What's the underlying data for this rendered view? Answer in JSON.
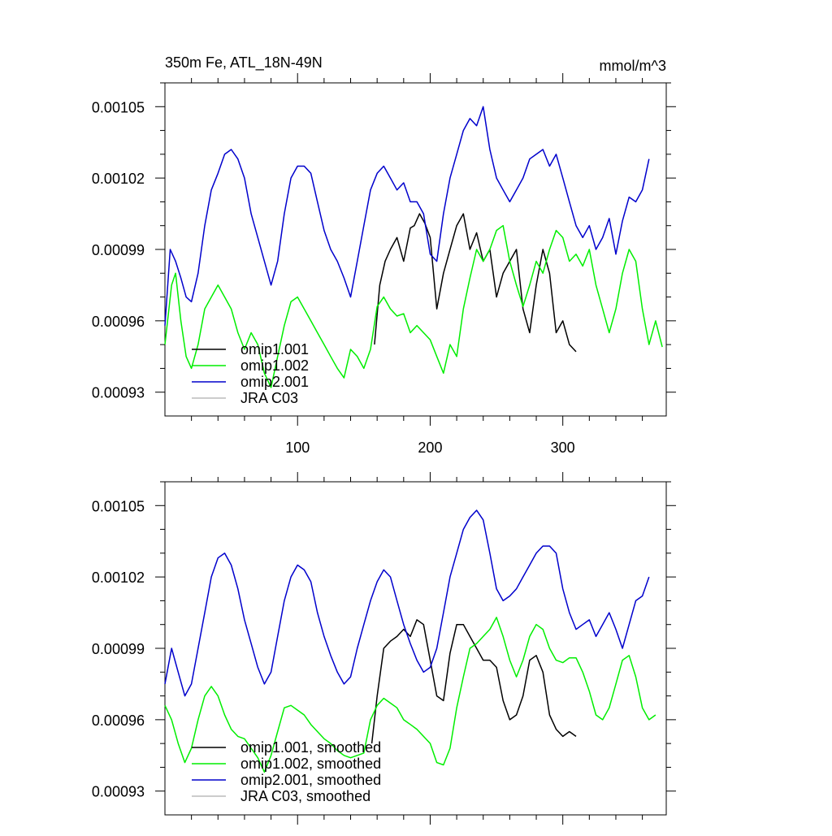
{
  "chart_data": [
    {
      "type": "line",
      "title": "350m Fe, ATL_18N-49N",
      "units": "mmol/m^3",
      "xlim": [
        0,
        378
      ],
      "ylim": [
        0.00092,
        0.00106
      ],
      "yticks": [
        0.00093,
        0.00096,
        0.00099,
        0.00102,
        0.00105
      ],
      "ytick_labels": [
        "0.00093",
        "0.00096",
        "0.00099",
        "0.00102",
        "0.00105"
      ],
      "xticks": [
        100,
        200,
        300
      ],
      "xtick_labels": [
        "100",
        "200",
        "300"
      ],
      "legend_position": "bottom-left",
      "series": [
        {
          "name": "omip1.001",
          "color": "#000000",
          "x": [
            158,
            162,
            166,
            170,
            175,
            180,
            185,
            188,
            192,
            196,
            200,
            205,
            210,
            215,
            220,
            225,
            230,
            235,
            240,
            245,
            250,
            255,
            260,
            265,
            270,
            275,
            280,
            285,
            290,
            295,
            300,
            305,
            310
          ],
          "y": [
            0.00095,
            0.000975,
            0.000985,
            0.00099,
            0.000995,
            0.000985,
            0.000999,
            0.001,
            0.001005,
            0.001001,
            0.000995,
            0.000965,
            0.00098,
            0.00099,
            0.001,
            0.001005,
            0.00099,
            0.000997,
            0.000985,
            0.00099,
            0.00097,
            0.00098,
            0.000985,
            0.00099,
            0.000965,
            0.000955,
            0.000975,
            0.00099,
            0.00098,
            0.000955,
            0.00096,
            0.00095,
            0.000947
          ]
        },
        {
          "name": "omip1.002",
          "color": "#00ee00",
          "x": [
            0,
            5,
            8,
            12,
            16,
            20,
            25,
            30,
            35,
            40,
            45,
            50,
            55,
            60,
            65,
            70,
            75,
            80,
            85,
            90,
            95,
            100,
            105,
            110,
            115,
            120,
            125,
            130,
            135,
            140,
            145,
            150,
            155,
            160,
            165,
            170,
            175,
            180,
            185,
            190,
            195,
            200,
            205,
            210,
            215,
            220,
            225,
            230,
            235,
            240,
            245,
            250,
            255,
            260,
            265,
            270,
            275,
            280,
            285,
            290,
            295,
            300,
            305,
            310,
            315,
            320,
            325,
            330,
            335,
            340,
            345,
            350,
            355,
            360,
            365,
            370,
            375
          ],
          "y": [
            0.00095,
            0.000975,
            0.00098,
            0.00096,
            0.000945,
            0.00094,
            0.00095,
            0.000965,
            0.00097,
            0.000975,
            0.00097,
            0.000965,
            0.000955,
            0.000948,
            0.000955,
            0.00095,
            0.000938,
            0.000932,
            0.000945,
            0.000958,
            0.000968,
            0.00097,
            0.000965,
            0.00096,
            0.000955,
            0.00095,
            0.000945,
            0.00094,
            0.000936,
            0.000948,
            0.000945,
            0.00094,
            0.000948,
            0.000966,
            0.00097,
            0.000965,
            0.000962,
            0.000963,
            0.000955,
            0.000958,
            0.000955,
            0.000952,
            0.000945,
            0.000938,
            0.00095,
            0.000945,
            0.000965,
            0.000978,
            0.00099,
            0.000985,
            0.00099,
            0.000998,
            0.001,
            0.000985,
            0.000975,
            0.000966,
            0.000975,
            0.000985,
            0.00098,
            0.00099,
            0.000998,
            0.000995,
            0.000985,
            0.000988,
            0.000983,
            0.00099,
            0.000975,
            0.000965,
            0.000955,
            0.000965,
            0.00098,
            0.00099,
            0.000985,
            0.000965,
            0.00095,
            0.00096,
            0.000949
          ]
        },
        {
          "name": "omip2.001",
          "color": "#0000cc",
          "x": [
            0,
            4,
            8,
            12,
            16,
            20,
            25,
            30,
            35,
            40,
            45,
            50,
            55,
            60,
            65,
            70,
            75,
            80,
            85,
            90,
            95,
            100,
            105,
            110,
            115,
            120,
            125,
            130,
            135,
            140,
            145,
            150,
            155,
            160,
            165,
            170,
            175,
            180,
            185,
            190,
            195,
            200,
            205,
            210,
            215,
            220,
            225,
            230,
            235,
            240,
            245,
            250,
            255,
            260,
            265,
            270,
            275,
            280,
            285,
            290,
            295,
            300,
            305,
            310,
            315,
            320,
            325,
            330,
            335,
            340,
            345,
            350,
            355,
            360,
            365
          ],
          "y": [
            0.000958,
            0.00099,
            0.000985,
            0.000978,
            0.00097,
            0.000968,
            0.00098,
            0.001,
            0.001015,
            0.001022,
            0.00103,
            0.001032,
            0.001028,
            0.00102,
            0.001005,
            0.000995,
            0.000985,
            0.000975,
            0.000985,
            0.001005,
            0.00102,
            0.001025,
            0.001025,
            0.001022,
            0.00101,
            0.000998,
            0.00099,
            0.000985,
            0.000978,
            0.00097,
            0.000985,
            0.001,
            0.001015,
            0.001022,
            0.001025,
            0.00102,
            0.001015,
            0.001018,
            0.00101,
            0.00101,
            0.001005,
            0.000988,
            0.000985,
            0.001005,
            0.00102,
            0.00103,
            0.00104,
            0.001045,
            0.001042,
            0.00105,
            0.001032,
            0.00102,
            0.001015,
            0.00101,
            0.001015,
            0.00102,
            0.001028,
            0.00103,
            0.001032,
            0.001025,
            0.00103,
            0.00102,
            0.00101,
            0.001,
            0.000995,
            0.001,
            0.00099,
            0.000995,
            0.001003,
            0.000988,
            0.001002,
            0.001012,
            0.00101,
            0.001015,
            0.001028
          ]
        },
        {
          "name": "JRA C03",
          "color": "#bbbbbb",
          "x": [],
          "y": []
        }
      ]
    },
    {
      "type": "line",
      "title": "",
      "xlim": [
        0,
        378
      ],
      "ylim": [
        0.00092,
        0.00106
      ],
      "yticks": [
        0.00093,
        0.00096,
        0.00099,
        0.00102,
        0.00105
      ],
      "ytick_labels": [
        "0.00093",
        "0.00096",
        "0.00099",
        "0.00102",
        "0.00105"
      ],
      "legend_position": "bottom-left",
      "series": [
        {
          "name": "omip1.001, smoothed",
          "color": "#000000",
          "x": [
            156,
            160,
            165,
            170,
            175,
            180,
            185,
            190,
            195,
            200,
            205,
            210,
            215,
            220,
            225,
            230,
            235,
            240,
            245,
            250,
            255,
            260,
            265,
            270,
            275,
            280,
            285,
            290,
            295,
            300,
            305,
            310
          ],
          "y": [
            0.00095,
            0.00097,
            0.00099,
            0.000993,
            0.000995,
            0.000998,
            0.000995,
            0.001002,
            0.001,
            0.000985,
            0.00097,
            0.000968,
            0.000988,
            0.001,
            0.001,
            0.000995,
            0.00099,
            0.000985,
            0.000985,
            0.000982,
            0.000968,
            0.00096,
            0.000962,
            0.00097,
            0.000985,
            0.000987,
            0.00098,
            0.000962,
            0.000956,
            0.000953,
            0.000955,
            0.000953
          ]
        },
        {
          "name": "omip1.002, smoothed",
          "color": "#00ee00",
          "x": [
            0,
            5,
            10,
            15,
            20,
            25,
            30,
            35,
            40,
            45,
            50,
            55,
            60,
            65,
            70,
            75,
            80,
            85,
            90,
            95,
            100,
            105,
            110,
            115,
            120,
            125,
            130,
            135,
            140,
            145,
            150,
            155,
            160,
            165,
            170,
            175,
            180,
            185,
            190,
            195,
            200,
            205,
            210,
            215,
            220,
            225,
            230,
            235,
            240,
            245,
            250,
            255,
            260,
            265,
            270,
            275,
            280,
            285,
            290,
            295,
            300,
            305,
            310,
            315,
            320,
            325,
            330,
            335,
            340,
            345,
            350,
            355,
            360,
            365,
            370
          ],
          "y": [
            0.000966,
            0.00096,
            0.00095,
            0.000942,
            0.000948,
            0.00096,
            0.00097,
            0.000974,
            0.00097,
            0.000962,
            0.000956,
            0.000953,
            0.000952,
            0.000948,
            0.000944,
            0.000938,
            0.000945,
            0.000955,
            0.000965,
            0.000966,
            0.000964,
            0.000962,
            0.000958,
            0.000955,
            0.000952,
            0.00095,
            0.000947,
            0.000945,
            0.000944,
            0.000945,
            0.000946,
            0.00096,
            0.000966,
            0.000969,
            0.000967,
            0.000965,
            0.00096,
            0.000958,
            0.000956,
            0.000953,
            0.00095,
            0.000942,
            0.000941,
            0.000948,
            0.000965,
            0.000978,
            0.00099,
            0.000992,
            0.000995,
            0.000998,
            0.001003,
            0.000995,
            0.000985,
            0.000978,
            0.000985,
            0.000995,
            0.001,
            0.000998,
            0.00099,
            0.000985,
            0.000984,
            0.000986,
            0.000986,
            0.00098,
            0.000972,
            0.000962,
            0.00096,
            0.000965,
            0.000975,
            0.000985,
            0.000987,
            0.000978,
            0.000965,
            0.00096,
            0.000962
          ]
        },
        {
          "name": "omip2.001, smoothed",
          "color": "#0000cc",
          "x": [
            0,
            5,
            10,
            15,
            20,
            25,
            30,
            35,
            40,
            45,
            50,
            55,
            60,
            65,
            70,
            75,
            80,
            85,
            90,
            95,
            100,
            105,
            110,
            115,
            120,
            125,
            130,
            135,
            140,
            145,
            150,
            155,
            160,
            165,
            170,
            175,
            180,
            185,
            190,
            195,
            200,
            205,
            210,
            215,
            220,
            225,
            230,
            235,
            240,
            245,
            250,
            255,
            260,
            265,
            270,
            275,
            280,
            285,
            290,
            295,
            300,
            305,
            310,
            315,
            320,
            325,
            330,
            335,
            340,
            345,
            350,
            355,
            360,
            365
          ],
          "y": [
            0.000975,
            0.00099,
            0.00098,
            0.00097,
            0.000975,
            0.00099,
            0.001005,
            0.00102,
            0.001028,
            0.00103,
            0.001025,
            0.001015,
            0.001002,
            0.000992,
            0.000982,
            0.000975,
            0.00098,
            0.000995,
            0.00101,
            0.00102,
            0.001025,
            0.001023,
            0.001018,
            0.001005,
            0.000995,
            0.000987,
            0.00098,
            0.000975,
            0.000978,
            0.00099,
            0.001,
            0.00101,
            0.001018,
            0.001023,
            0.00102,
            0.00101,
            0.001,
            0.000992,
            0.000985,
            0.00098,
            0.000982,
            0.00099,
            0.001005,
            0.00102,
            0.00103,
            0.00104,
            0.001045,
            0.001048,
            0.001044,
            0.00103,
            0.001015,
            0.00101,
            0.001012,
            0.001015,
            0.00102,
            0.001025,
            0.00103,
            0.001033,
            0.001033,
            0.00103,
            0.001015,
            0.001005,
            0.000998,
            0.001,
            0.001002,
            0.000995,
            0.001,
            0.001005,
            0.000998,
            0.00099,
            0.001,
            0.00101,
            0.001012,
            0.00102
          ]
        },
        {
          "name": "JRA C03, smoothed",
          "color": "#bbbbbb",
          "x": [],
          "y": []
        }
      ]
    }
  ]
}
